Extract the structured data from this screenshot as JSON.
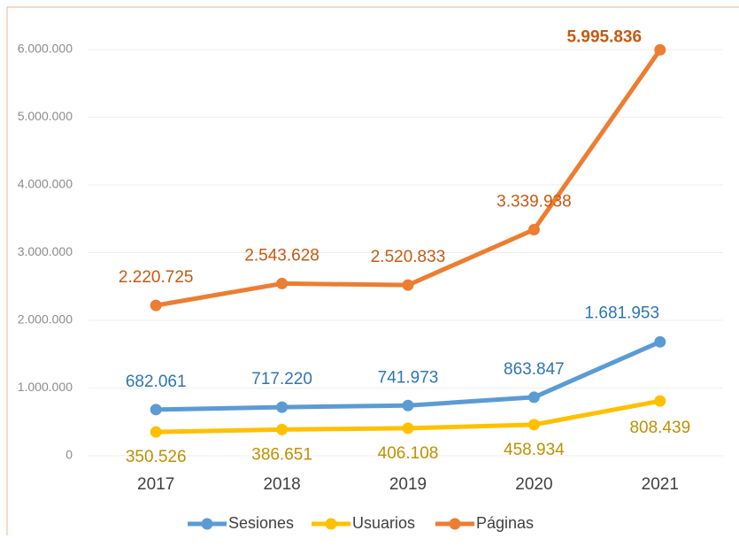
{
  "chart_data": {
    "type": "line",
    "categories": [
      "2017",
      "2018",
      "2019",
      "2020",
      "2021"
    ],
    "series": [
      {
        "name": "Sesiones",
        "color": "#5b9bd5",
        "label_color": "#2e75b6",
        "values": [
          682061,
          717220,
          741973,
          863847,
          1681953
        ],
        "value_labels": [
          "682.061",
          "717.220",
          "741.973",
          "863.847",
          "1.681.953"
        ]
      },
      {
        "name": "Usuarios",
        "color": "#ffc000",
        "label_color": "#bf9000",
        "values": [
          350526,
          386651,
          406108,
          458934,
          808439
        ],
        "value_labels": [
          "350.526",
          "386.651",
          "406.108",
          "458.934",
          "808.439"
        ]
      },
      {
        "name": "Páginas",
        "color": "#ed7d31",
        "label_color": "#c55a11",
        "values": [
          2220725,
          2543628,
          2520833,
          3339938,
          5995836
        ],
        "value_labels": [
          "2.220.725",
          "2.543.628",
          "2.520.833",
          "3.339.938",
          "5.995.836"
        ]
      }
    ],
    "ylim": [
      0,
      6000000
    ],
    "yticks": [
      0,
      {
        "value": 1000000,
        "label": "1.000.000"
      },
      {
        "value": 2000000,
        "label": "2.000.000"
      },
      {
        "value": 3000000,
        "label": "3.000.000"
      },
      {
        "value": 4000000,
        "label": "4.000.000"
      },
      {
        "value": 5000000,
        "label": "5.000.000"
      },
      {
        "value": 6000000,
        "label": "6.000.000"
      }
    ],
    "grid": true,
    "legend": "bottom"
  }
}
